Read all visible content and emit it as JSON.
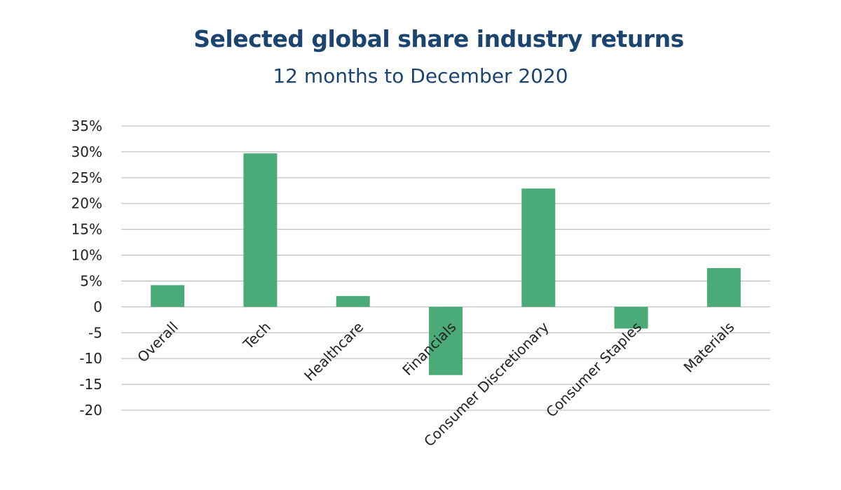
{
  "chart_data": {
    "type": "bar",
    "title": "Selected global share industry returns",
    "subtitle": "12 months to December 2020",
    "categories": [
      "Overall",
      "Tech",
      "Healthcare",
      "Financials",
      "Consumer Discretionary",
      "Consumer Staples",
      "Materials"
    ],
    "values": [
      4.2,
      29.7,
      2.1,
      -13.2,
      22.9,
      -4.2,
      7.5
    ],
    "ylim": [
      -20,
      35
    ],
    "yticks": [
      35,
      30,
      25,
      20,
      15,
      10,
      5,
      0,
      -5,
      -10,
      -15,
      -20
    ],
    "ytick_labels": [
      "35%",
      "30%",
      "25%",
      "20%",
      "15%",
      "10%",
      "5%",
      "0",
      "-5",
      "-10",
      "-15",
      "-20"
    ],
    "xlabel": "",
    "ylabel": "",
    "grid": true,
    "legend": "none",
    "bar_color": "#4aab78",
    "grid_color": "#b4b4b4"
  }
}
